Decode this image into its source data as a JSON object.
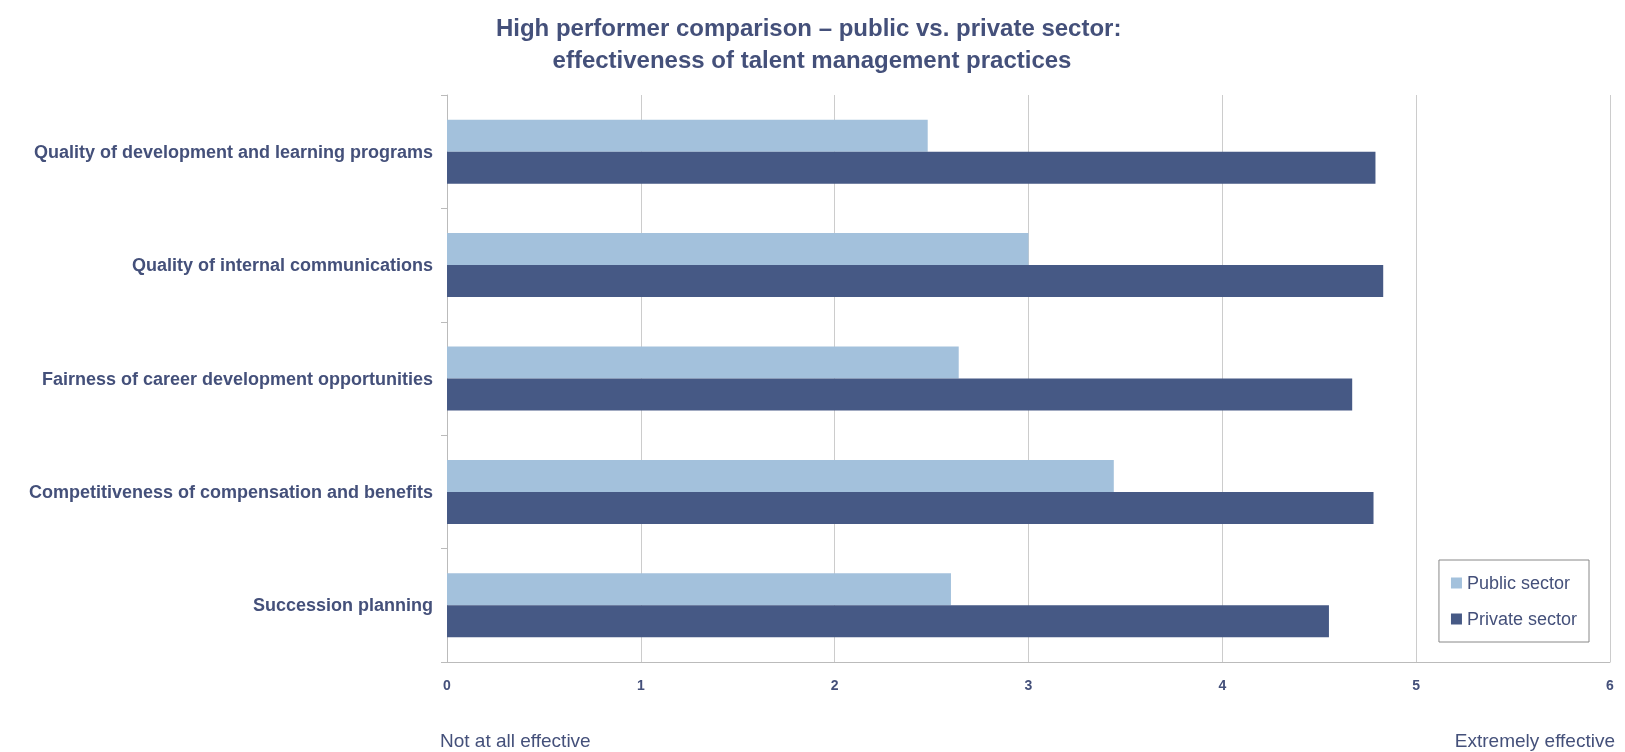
{
  "chart_data": {
    "type": "bar",
    "orientation": "horizontal",
    "title": "High performer comparison – public vs. private sector: effectiveness of talent management practices",
    "categories": [
      "Quality of development and learning programs",
      "Quality of internal communications",
      "Fairness of career development opportunities",
      "Competitiveness of compensation and benefits",
      "Succession planning"
    ],
    "series": [
      {
        "name": "Public sector",
        "color": "#a3c1dc",
        "values": [
          2.48,
          3.0,
          2.64,
          3.44,
          2.6
        ]
      },
      {
        "name": "Private sector",
        "color": "#465985",
        "values": [
          4.79,
          4.83,
          4.67,
          4.78,
          4.55
        ]
      }
    ],
    "xlim": [
      0,
      6
    ],
    "xticks": [
      0,
      1,
      2,
      3,
      4,
      5,
      6
    ],
    "grid": "x",
    "legend": "bottom right",
    "annotations": [
      "Not at all effective",
      "Extremely effective"
    ]
  }
}
